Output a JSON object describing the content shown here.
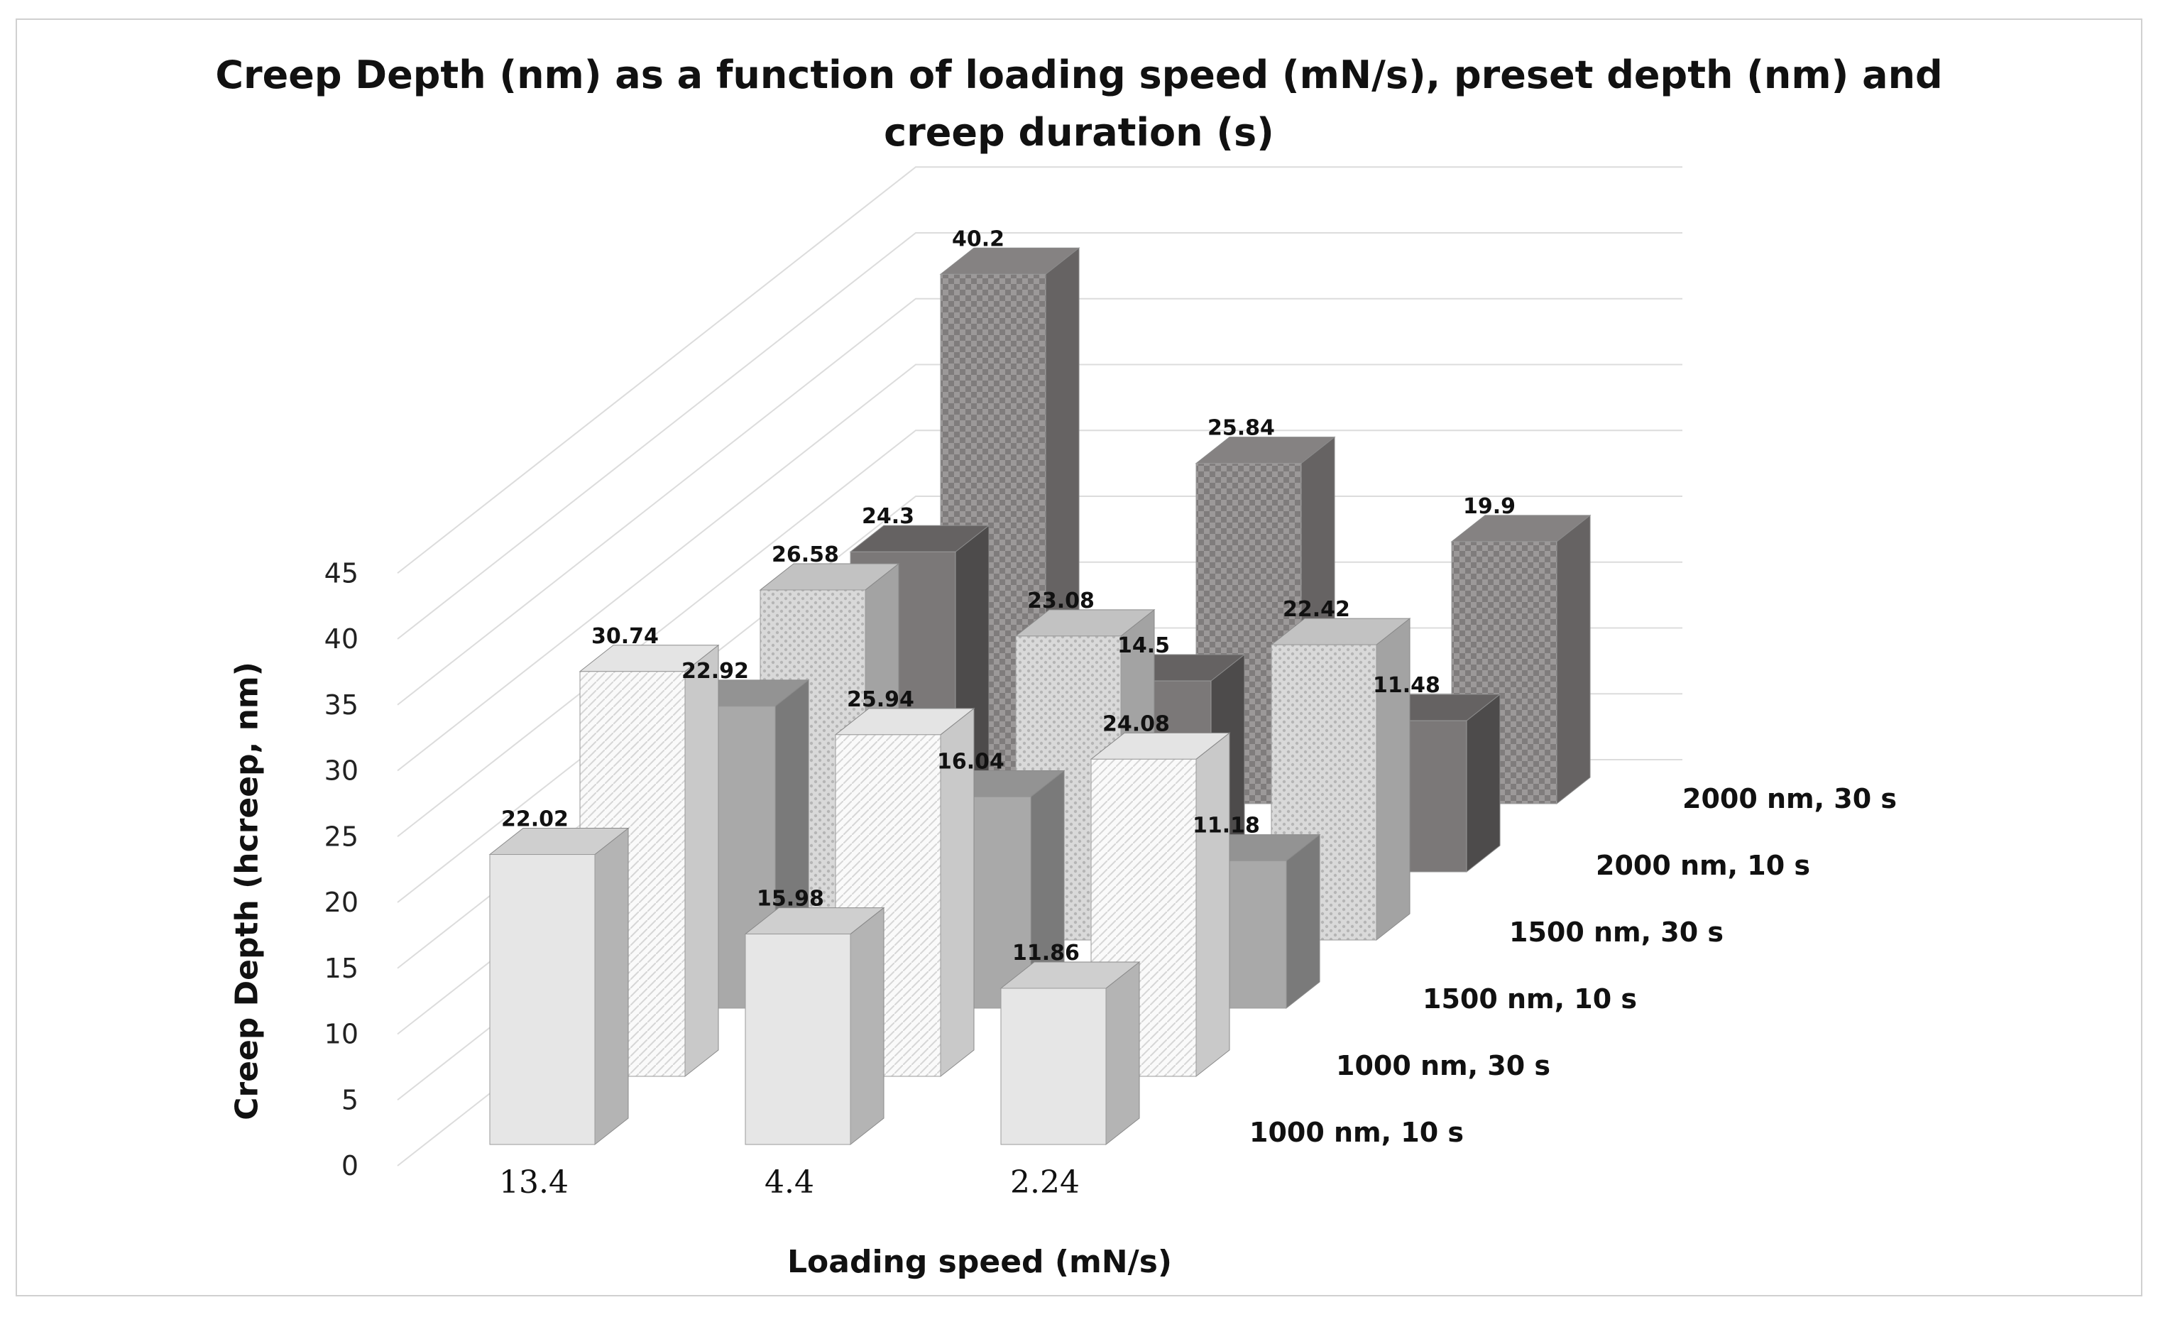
{
  "chart_data": {
    "type": "bar",
    "subtype": "3d-column",
    "title_line1": "Creep Depth (nm) as a function of loading speed (mN/s), preset depth (nm) and",
    "title_line2": "creep duration (s)",
    "xlabel": "Loading speed (mN/s)",
    "ylabel": "Creep Depth (hcreep, nm)",
    "ylim": [
      0,
      45
    ],
    "yticks": [
      "0",
      "5",
      "10",
      "15",
      "20",
      "25",
      "30",
      "35",
      "40",
      "45"
    ],
    "categories": [
      "13.4",
      "4.4",
      "2.24"
    ],
    "series": [
      {
        "name": "1000 nm, 10 s",
        "values": [
          22.02,
          15.98,
          11.86
        ],
        "labels": [
          "22.02",
          "15.98",
          "11.86"
        ]
      },
      {
        "name": "1000 nm, 30 s",
        "values": [
          30.74,
          25.94,
          24.08
        ],
        "labels": [
          "30.74",
          "25.94",
          "24.08"
        ]
      },
      {
        "name": "1500 nm, 10 s",
        "values": [
          22.92,
          16.04,
          11.18
        ],
        "labels": [
          "22.92",
          "16.04",
          "11.18"
        ]
      },
      {
        "name": "1500 nm, 30 s",
        "values": [
          26.58,
          23.08,
          22.42
        ],
        "labels": [
          "26.58",
          "23.08",
          "22.42"
        ]
      },
      {
        "name": "2000 nm, 10 s",
        "values": [
          24.3,
          14.5,
          11.48
        ],
        "labels": [
          "24.3",
          "14.5",
          "11.48"
        ]
      },
      {
        "name": "2000 nm, 30 s",
        "values": [
          40.2,
          25.84,
          19.9
        ],
        "labels": [
          "40.2",
          "25.84",
          "19.9"
        ]
      }
    ],
    "colors": {
      "s0": [
        "#e6e6e6",
        "#b4b4b4",
        "#cfcfcf"
      ],
      "s1": [
        "#f7f7f7",
        "#c8c8c8",
        "#e2e2e2"
      ],
      "s2": [
        "#a9a9a9",
        "#7a7a7a",
        "#939393"
      ],
      "s3": [
        "#d6d6d6",
        "#9f9f9f",
        "#bdbdbd"
      ],
      "s4": [
        "#7b7878",
        "#4d4b4b",
        "#656262"
      ],
      "s5": [
        "#999696",
        "#666363",
        "#858282"
      ],
      "grid": "#dcdcdc"
    }
  }
}
